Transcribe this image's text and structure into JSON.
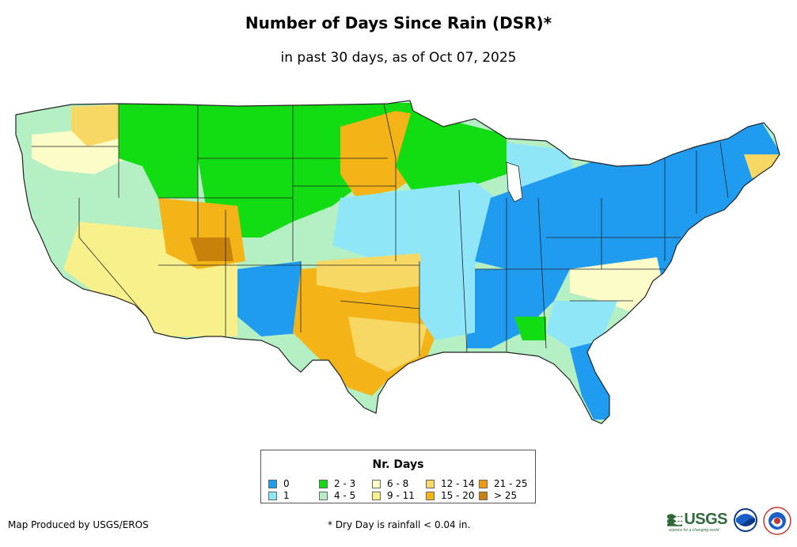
{
  "header": {
    "title": "Number of Days Since Rain (DSR)*",
    "subtitle": "in past 30 days, as of Oct 07, 2025"
  },
  "legend": {
    "title": "Nr. Days",
    "items": [
      {
        "label": "0",
        "color": "#1f9bf0"
      },
      {
        "label": "1",
        "color": "#8ee6f8"
      },
      {
        "label": "2 - 3",
        "color": "#12dc12"
      },
      {
        "label": "4 - 5",
        "color": "#b4f0c4"
      },
      {
        "label": "6 - 8",
        "color": "#fcfcc8"
      },
      {
        "label": "9 - 11",
        "color": "#f8f08a"
      },
      {
        "label": "12 - 14",
        "color": "#f8d864"
      },
      {
        "label": "15 - 20",
        "color": "#f4b418"
      },
      {
        "label": "21 - 25",
        "color": "#f09c10"
      },
      {
        "label": "> 25",
        "color": "#c8820a"
      }
    ]
  },
  "footer": {
    "credit": "Map Produced by USGS/EROS",
    "footnote": "* Dry Day is rainfall < 0.04 in.",
    "logo_usgs": "USGS",
    "logo_usgs_tagline": "science for a changing world",
    "logo_noaa": "noaa-logo",
    "logo_nws": "nws-logo"
  },
  "map": {
    "region": "Contiguous United States",
    "icon": "us-map"
  }
}
